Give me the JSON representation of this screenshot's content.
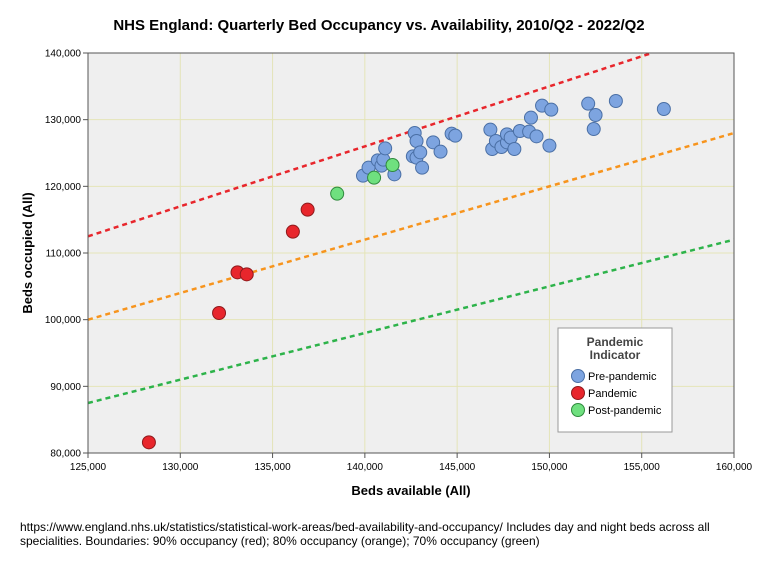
{
  "chart_data": {
    "type": "scatter",
    "title": "NHS England: Quarterly Bed Occupancy vs. Availability, 2010/Q2 - 2022/Q2",
    "xlabel": "Beds available (All)",
    "ylabel": "Beds occupied (All)",
    "xlim": [
      125000,
      160000
    ],
    "ylim": [
      80000,
      140000
    ],
    "x_ticks": [
      125000,
      130000,
      135000,
      140000,
      145000,
      150000,
      155000,
      160000
    ],
    "y_ticks": [
      80000,
      90000,
      100000,
      110000,
      120000,
      130000,
      140000
    ],
    "x_tick_labels": [
      "125,000",
      "130,000",
      "135,000",
      "140,000",
      "145,000",
      "150,000",
      "155,000",
      "160,000"
    ],
    "y_tick_labels": [
      "80,000",
      "90,000",
      "100,000",
      "110,000",
      "120,000",
      "130,000",
      "140,000"
    ],
    "grid": true,
    "legend": {
      "title_line1": "Pandemic",
      "title_line2": "Indicator",
      "placement": "bottom-right",
      "entries": [
        "Pre-pandemic",
        "Pandemic",
        "Post-pandemic"
      ]
    },
    "colors": {
      "Pre-pandemic": "#7da4e0",
      "Pandemic": "#e8262c",
      "Post-pandemic": "#6fe07f",
      "background": "#efefef",
      "grid": "#e4e4b8",
      "boundary_90": "#e8262c",
      "boundary_80": "#f7941d",
      "boundary_70": "#2db34a"
    },
    "boundaries": [
      {
        "name": "90% occupancy",
        "ratio": 0.9,
        "color": "#e8262c"
      },
      {
        "name": "80% occupancy",
        "ratio": 0.8,
        "color": "#f7941d"
      },
      {
        "name": "70% occupancy",
        "ratio": 0.7,
        "color": "#2db34a"
      }
    ],
    "series": [
      {
        "name": "Pre-pandemic",
        "points": [
          [
            139900,
            121600
          ],
          [
            140200,
            122800
          ],
          [
            140700,
            123900
          ],
          [
            140900,
            123100
          ],
          [
            141000,
            124000
          ],
          [
            141100,
            125700
          ],
          [
            141600,
            121800
          ],
          [
            142600,
            124500
          ],
          [
            142700,
            128000
          ],
          [
            142800,
            126800
          ],
          [
            142800,
            124300
          ],
          [
            143000,
            125100
          ],
          [
            143100,
            122800
          ],
          [
            143700,
            126600
          ],
          [
            144100,
            125200
          ],
          [
            144700,
            127900
          ],
          [
            144900,
            127600
          ],
          [
            146800,
            128500
          ],
          [
            146900,
            125600
          ],
          [
            147100,
            126800
          ],
          [
            147400,
            125900
          ],
          [
            147700,
            126600
          ],
          [
            147700,
            127800
          ],
          [
            147900,
            127300
          ],
          [
            148100,
            125600
          ],
          [
            148400,
            128300
          ],
          [
            148900,
            128200
          ],
          [
            149000,
            130300
          ],
          [
            149300,
            127500
          ],
          [
            149600,
            132100
          ],
          [
            150000,
            126100
          ],
          [
            150100,
            131500
          ],
          [
            152100,
            132400
          ],
          [
            152400,
            128600
          ],
          [
            152500,
            130700
          ],
          [
            153600,
            132800
          ],
          [
            156200,
            131600
          ]
        ]
      },
      {
        "name": "Pandemic",
        "points": [
          [
            128300,
            81600
          ],
          [
            132100,
            101000
          ],
          [
            133100,
            107100
          ],
          [
            133600,
            106800
          ],
          [
            136100,
            113200
          ],
          [
            136900,
            116500
          ]
        ]
      },
      {
        "name": "Post-pandemic",
        "points": [
          [
            138500,
            118900
          ],
          [
            140500,
            121300
          ],
          [
            141500,
            123200
          ]
        ]
      }
    ]
  },
  "footnote": "https://www.england.nhs.uk/statistics/statistical-work-areas/bed-availability-and-occupancy/ Includes day and night beds across all specialities. Boundaries: 90% occupancy (red); 80% occupancy (orange); 70% occupancy (green)"
}
